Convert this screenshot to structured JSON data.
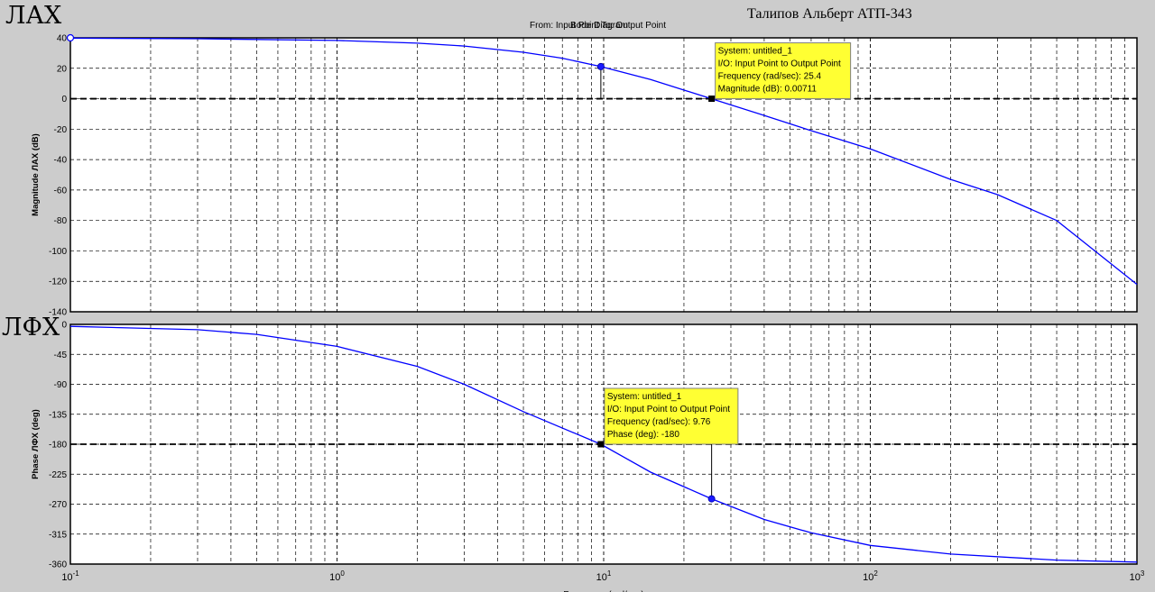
{
  "page": {
    "mag_label": "ЛАХ",
    "phase_label": "ЛФХ",
    "author": "Талипов Альберт АТП-343",
    "from_to": "From: Input Point  To: Output Point",
    "plot_title": "Bode Diagram"
  },
  "chart_data": [
    {
      "type": "line",
      "name": "magnitude",
      "ylabel": "Magnitude ЛАХ (dB)",
      "xscale": "log",
      "xlim": [
        0.1,
        1000
      ],
      "ylim": [
        -140,
        40
      ],
      "yticks": [
        40,
        20,
        0,
        -20,
        -40,
        -60,
        -80,
        -100,
        -120,
        -140
      ],
      "grid": true,
      "reference_line": 0,
      "series": [
        {
          "color": "#0000ff",
          "x": [
            0.1,
            0.3,
            1,
            2,
            3,
            5,
            7,
            9.76,
            15,
            25.4,
            40,
            60,
            100,
            200,
            300,
            500,
            1000
          ],
          "y": [
            39.8,
            39.4,
            38.3,
            36.5,
            34.6,
            30.5,
            26.6,
            21.1,
            12.6,
            0.0,
            -11,
            -21,
            -33,
            -53,
            -63,
            -80,
            -122
          ]
        }
      ],
      "markers": [
        {
          "x": 9.76,
          "y": 21.1,
          "shape": "dot"
        },
        {
          "x": 25.4,
          "y": 0.0,
          "shape": "square"
        },
        {
          "x": 0.1,
          "y": 40,
          "shape": "ring"
        }
      ],
      "datatip": {
        "x": 25.4,
        "y": 0.0,
        "lines": [
          "System: untitled_1",
          "I/O: Input Point to Output Point",
          "Frequency (rad/sec): 25.4",
          "Magnitude (dB): 0.00711"
        ]
      }
    },
    {
      "type": "line",
      "name": "phase",
      "ylabel": "Phase ЛФХ (deg)",
      "xlabel": "Frequency (rad/sec)",
      "xscale": "log",
      "xlim": [
        0.1,
        1000
      ],
      "ylim": [
        -360,
        0
      ],
      "yticks": [
        0,
        -45,
        -90,
        -135,
        -180,
        -225,
        -270,
        -315,
        -360
      ],
      "xticks": [
        {
          "value": 0.1,
          "base": "10",
          "exp": "-1"
        },
        {
          "value": 1,
          "base": "10",
          "exp": "0"
        },
        {
          "value": 10,
          "base": "10",
          "exp": "1"
        },
        {
          "value": 100,
          "base": "10",
          "exp": "2"
        },
        {
          "value": 1000,
          "base": "10",
          "exp": "3"
        }
      ],
      "grid": true,
      "reference_line": -180,
      "series": [
        {
          "color": "#0000ff",
          "x": [
            0.1,
            0.3,
            0.5,
            1,
            2,
            3,
            5,
            9.76,
            15,
            25.4,
            40,
            60,
            100,
            200,
            500,
            1000
          ],
          "y": [
            -3,
            -8,
            -15,
            -33,
            -63,
            -90,
            -131,
            -180,
            -222,
            -262,
            -293,
            -313,
            -332,
            -345,
            -354,
            -357
          ]
        }
      ],
      "markers": [
        {
          "x": 9.76,
          "y": -180,
          "shape": "square"
        },
        {
          "x": 25.4,
          "y": -262,
          "shape": "dot"
        }
      ],
      "datatip": {
        "x": 9.76,
        "y": -180,
        "lines": [
          "System: untitled_1",
          "I/O: Input Point to Output Point",
          "Frequency (rad/sec): 9.76",
          "Phase (deg): -180"
        ]
      }
    }
  ]
}
